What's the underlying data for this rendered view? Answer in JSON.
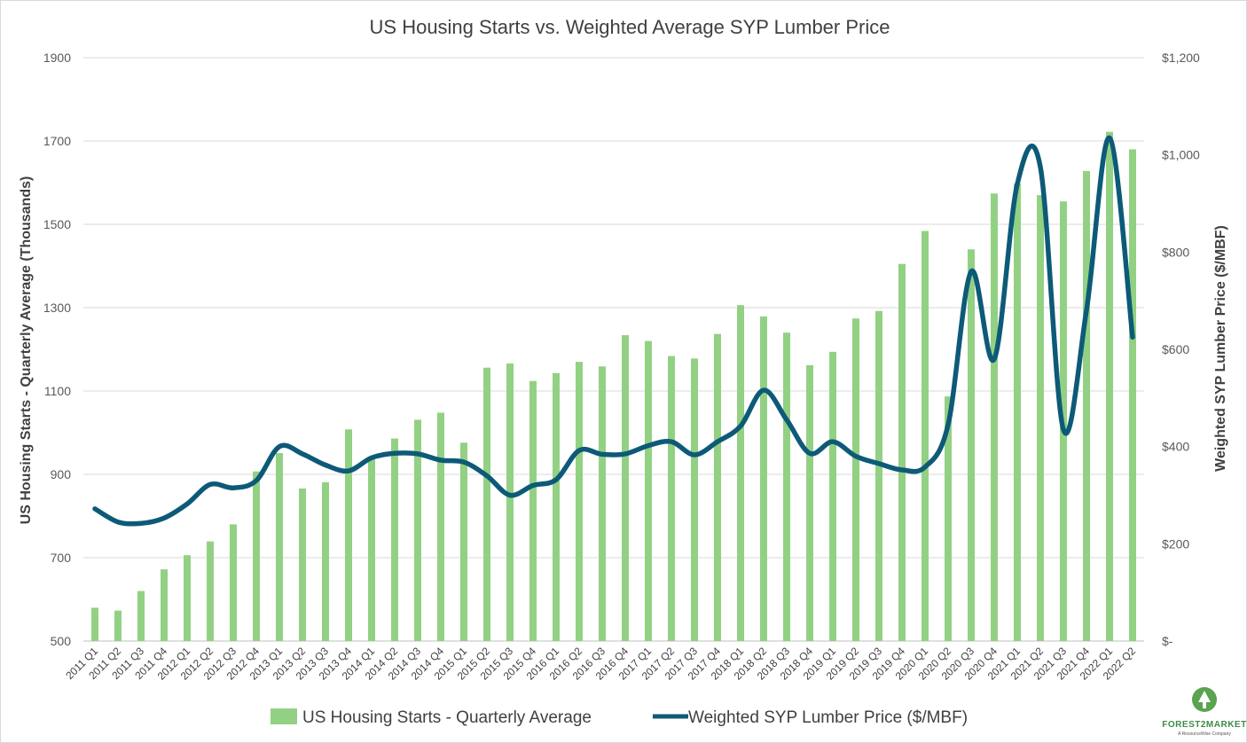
{
  "chart_data": {
    "type": "bar",
    "title": "US Housing Starts vs. Weighted Average SYP Lumber Price",
    "ylabel_left": "US Housing Starts - Quarterly Average (Thousands)",
    "ylabel_right": "Weighted SYP Lumber Price ($/MBF)",
    "ylim_left": [
      500,
      1900
    ],
    "ylim_right": [
      0,
      1200
    ],
    "yticks_left": [
      "500",
      "700",
      "900",
      "1100",
      "1300",
      "1500",
      "1700",
      "1900"
    ],
    "yticks_right": [
      "$-",
      "$200",
      "$400",
      "$600",
      "$800",
      "$1,000",
      "$1,200"
    ],
    "grid": true,
    "legend_position": "bottom",
    "categories": [
      "2011 Q1",
      "2011 Q2",
      "2011 Q3",
      "2011 Q4",
      "2012 Q1",
      "2012 Q2",
      "2012 Q3",
      "2012 Q4",
      "2013 Q1",
      "2013 Q2",
      "2013 Q3",
      "2013 Q4",
      "2014 Q1",
      "2014 Q2",
      "2014 Q3",
      "2014 Q4",
      "2015 Q1",
      "2015 Q2",
      "2015 Q3",
      "2015 Q4",
      "2016 Q1",
      "2016 Q2",
      "2016 Q3",
      "2016 Q4",
      "2017 Q1",
      "2017 Q2",
      "2017 Q3",
      "2017 Q4",
      "2018 Q1",
      "2018 Q2",
      "2018 Q3",
      "2018 Q4",
      "2019 Q1",
      "2019 Q2",
      "2019 Q3",
      "2019 Q4",
      "2020 Q1",
      "2020 Q2",
      "2020 Q3",
      "2020 Q4",
      "2021 Q1",
      "2021 Q2",
      "2021 Q3",
      "2021 Q4",
      "2022 Q1",
      "2022 Q2"
    ],
    "series": [
      {
        "name": "US Housing Starts - Quarterly Average",
        "type": "bar",
        "axis": "left",
        "color": "#92d183",
        "values": [
          580,
          573,
          620,
          672,
          706,
          739,
          780,
          907,
          951,
          866,
          881,
          1008,
          938,
          986,
          1031,
          1048,
          976,
          1156,
          1166,
          1124,
          1143,
          1170,
          1159,
          1234,
          1220,
          1184,
          1178,
          1237,
          1306,
          1279,
          1240,
          1162,
          1194,
          1274,
          1292,
          1405,
          1484,
          1087,
          1440,
          1574,
          1598,
          1570,
          1555,
          1628,
          1722,
          1680
        ]
      },
      {
        "name": "Weighted SYP Lumber Price ($/MBF)",
        "type": "line",
        "axis": "right",
        "color": "#0d5a78",
        "values": [
          272,
          245,
          242,
          253,
          282,
          322,
          315,
          330,
          400,
          385,
          362,
          350,
          377,
          386,
          385,
          372,
          368,
          340,
          300,
          320,
          332,
          392,
          384,
          385,
          402,
          410,
          383,
          410,
          442,
          516,
          455,
          386,
          410,
          380,
          365,
          352,
          358,
          445,
          760,
          580,
          940,
          975,
          435,
          680,
          1035,
          625
        ]
      }
    ]
  },
  "legend": {
    "bar_label": "US Housing Starts - Quarterly Average",
    "line_label": "Weighted SYP Lumber Price ($/MBF)"
  },
  "logo": {
    "name": "FOREST2MARKET",
    "tagline": "A ResourceWise Company"
  }
}
